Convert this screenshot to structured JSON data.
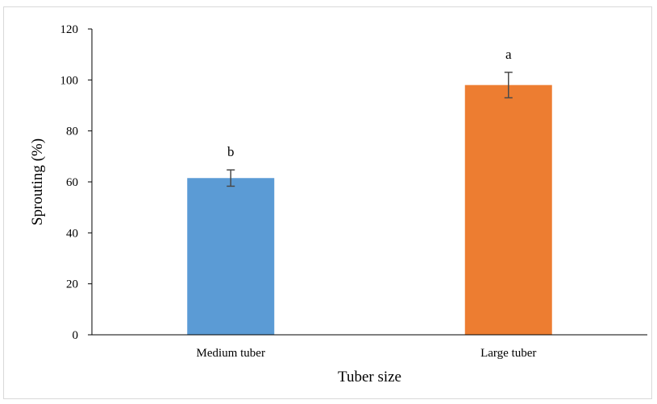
{
  "chart_data": {
    "type": "bar",
    "categories": [
      "Medium tuber",
      "Large tuber"
    ],
    "values": [
      61.5,
      98
    ],
    "errors": [
      3.2,
      5.0
    ],
    "significance_letters": [
      "b",
      "a"
    ],
    "colors": [
      "#5b9bd5",
      "#ed7d31"
    ],
    "title": "",
    "xlabel": "Tuber size",
    "ylabel": "Sprouting (%)",
    "ylim": [
      0,
      120
    ],
    "yticks": [
      0,
      20,
      40,
      60,
      80,
      100,
      120
    ],
    "grid": false,
    "legend": "none"
  }
}
